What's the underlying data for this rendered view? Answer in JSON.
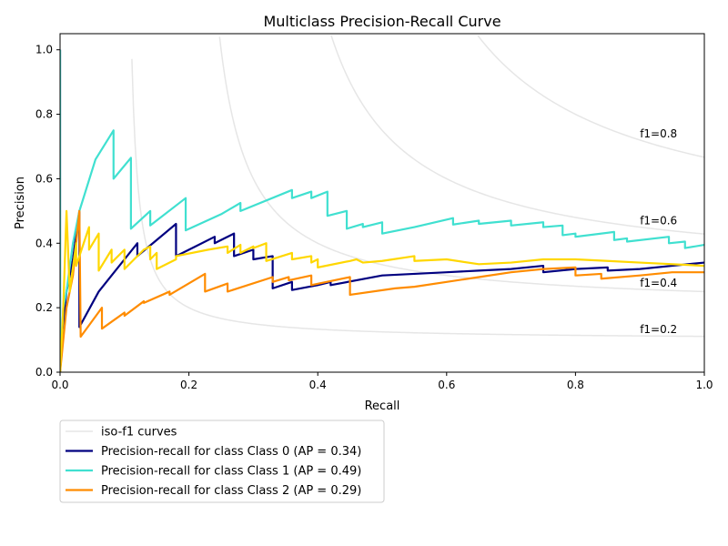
{
  "chart_data": {
    "type": "line",
    "title": "Multiclass Precision-Recall Curve",
    "xlabel": "Recall",
    "ylabel": "Precision",
    "xlim": [
      0.0,
      1.0
    ],
    "ylim": [
      0.0,
      1.05
    ],
    "xticks": [
      "0.0",
      "0.2",
      "0.4",
      "0.6",
      "0.8",
      "1.0"
    ],
    "yticks": [
      "0.0",
      "0.2",
      "0.4",
      "0.6",
      "0.8",
      "1.0"
    ],
    "grid": false,
    "legend_placement": "below plot",
    "iso_f1": {
      "legend_label": "iso-f1 curves",
      "color": "#e6e6e6",
      "levels": [
        0.2,
        0.4,
        0.6,
        0.8
      ],
      "labels": [
        "f1=0.2",
        "f1=0.4",
        "f1=0.6",
        "f1=0.8"
      ]
    },
    "series": [
      {
        "name": "Precision-recall for class Class 0 (AP = 0.34)",
        "color": "#000080",
        "in_legend": true,
        "points": [
          [
            0,
            1.0
          ],
          [
            0,
            0.0
          ],
          [
            0.005,
            0.15
          ],
          [
            0.01,
            0.25
          ],
          [
            0.02,
            0.35
          ],
          [
            0.03,
            0.5
          ],
          [
            0.03,
            0.14
          ],
          [
            0.06,
            0.25
          ],
          [
            0.08,
            0.3
          ],
          [
            0.1,
            0.35
          ],
          [
            0.12,
            0.4
          ],
          [
            0.12,
            0.36
          ],
          [
            0.15,
            0.41
          ],
          [
            0.18,
            0.46
          ],
          [
            0.18,
            0.36
          ],
          [
            0.21,
            0.39
          ],
          [
            0.24,
            0.42
          ],
          [
            0.24,
            0.4
          ],
          [
            0.27,
            0.43
          ],
          [
            0.27,
            0.36
          ],
          [
            0.3,
            0.38
          ],
          [
            0.3,
            0.35
          ],
          [
            0.33,
            0.36
          ],
          [
            0.33,
            0.26
          ],
          [
            0.36,
            0.28
          ],
          [
            0.36,
            0.255
          ],
          [
            0.4,
            0.27
          ],
          [
            0.42,
            0.28
          ],
          [
            0.42,
            0.27
          ],
          [
            0.5,
            0.3
          ],
          [
            0.55,
            0.305
          ],
          [
            0.6,
            0.31
          ],
          [
            0.65,
            0.315
          ],
          [
            0.7,
            0.32
          ],
          [
            0.75,
            0.33
          ],
          [
            0.75,
            0.31
          ],
          [
            0.8,
            0.32
          ],
          [
            0.85,
            0.325
          ],
          [
            0.85,
            0.315
          ],
          [
            0.9,
            0.32
          ],
          [
            0.95,
            0.33
          ],
          [
            1.0,
            0.34
          ]
        ]
      },
      {
        "name": "Precision-recall for class Class 1 (AP = 0.49)",
        "color": "#40e0d0",
        "in_legend": true,
        "points": [
          [
            0,
            1.0
          ],
          [
            0,
            0.0
          ],
          [
            0.005,
            0.2
          ],
          [
            0.01,
            0.25
          ],
          [
            0.02,
            0.4
          ],
          [
            0.03,
            0.5
          ],
          [
            0.055,
            0.66
          ],
          [
            0.083,
            0.75
          ],
          [
            0.083,
            0.6
          ],
          [
            0.11,
            0.665
          ],
          [
            0.11,
            0.445
          ],
          [
            0.14,
            0.5
          ],
          [
            0.14,
            0.455
          ],
          [
            0.195,
            0.54
          ],
          [
            0.195,
            0.44
          ],
          [
            0.25,
            0.49
          ],
          [
            0.28,
            0.525
          ],
          [
            0.28,
            0.5
          ],
          [
            0.36,
            0.565
          ],
          [
            0.36,
            0.54
          ],
          [
            0.39,
            0.56
          ],
          [
            0.39,
            0.54
          ],
          [
            0.415,
            0.56
          ],
          [
            0.415,
            0.485
          ],
          [
            0.445,
            0.5
          ],
          [
            0.445,
            0.445
          ],
          [
            0.47,
            0.46
          ],
          [
            0.47,
            0.45
          ],
          [
            0.5,
            0.465
          ],
          [
            0.5,
            0.43
          ],
          [
            0.55,
            0.45
          ],
          [
            0.61,
            0.478
          ],
          [
            0.61,
            0.458
          ],
          [
            0.65,
            0.47
          ],
          [
            0.65,
            0.46
          ],
          [
            0.7,
            0.47
          ],
          [
            0.7,
            0.455
          ],
          [
            0.75,
            0.465
          ],
          [
            0.75,
            0.45
          ],
          [
            0.78,
            0.455
          ],
          [
            0.78,
            0.425
          ],
          [
            0.8,
            0.43
          ],
          [
            0.8,
            0.42
          ],
          [
            0.86,
            0.435
          ],
          [
            0.86,
            0.41
          ],
          [
            0.88,
            0.415
          ],
          [
            0.88,
            0.405
          ],
          [
            0.945,
            0.42
          ],
          [
            0.945,
            0.4
          ],
          [
            0.97,
            0.405
          ],
          [
            0.97,
            0.385
          ],
          [
            1.0,
            0.395
          ]
        ]
      },
      {
        "name": "Precision-recall for class Class 2 (AP = 0.29)",
        "color": "#ff8c00",
        "in_legend": true,
        "points": [
          [
            0,
            0.0
          ],
          [
            0.005,
            0.1
          ],
          [
            0.01,
            0.2
          ],
          [
            0.02,
            0.3
          ],
          [
            0.03,
            0.5
          ],
          [
            0.032,
            0.11
          ],
          [
            0.065,
            0.2
          ],
          [
            0.065,
            0.135
          ],
          [
            0.1,
            0.185
          ],
          [
            0.1,
            0.175
          ],
          [
            0.13,
            0.22
          ],
          [
            0.13,
            0.215
          ],
          [
            0.17,
            0.25
          ],
          [
            0.17,
            0.24
          ],
          [
            0.225,
            0.305
          ],
          [
            0.225,
            0.25
          ],
          [
            0.26,
            0.275
          ],
          [
            0.26,
            0.25
          ],
          [
            0.33,
            0.295
          ],
          [
            0.33,
            0.28
          ],
          [
            0.355,
            0.295
          ],
          [
            0.355,
            0.285
          ],
          [
            0.39,
            0.3
          ],
          [
            0.39,
            0.27
          ],
          [
            0.45,
            0.295
          ],
          [
            0.45,
            0.24
          ],
          [
            0.52,
            0.26
          ],
          [
            0.55,
            0.265
          ],
          [
            0.6,
            0.28
          ],
          [
            0.65,
            0.295
          ],
          [
            0.7,
            0.31
          ],
          [
            0.75,
            0.32
          ],
          [
            0.8,
            0.325
          ],
          [
            0.8,
            0.3
          ],
          [
            0.84,
            0.305
          ],
          [
            0.84,
            0.29
          ],
          [
            0.9,
            0.3
          ],
          [
            0.95,
            0.31
          ],
          [
            1.0,
            0.31
          ]
        ]
      },
      {
        "name": "",
        "color": "#ffd700",
        "in_legend": false,
        "points": [
          [
            0,
            0.0
          ],
          [
            0.005,
            0.2
          ],
          [
            0.01,
            0.5
          ],
          [
            0.015,
            0.25
          ],
          [
            0.025,
            0.4
          ],
          [
            0.025,
            0.33
          ],
          [
            0.045,
            0.45
          ],
          [
            0.045,
            0.38
          ],
          [
            0.06,
            0.43
          ],
          [
            0.06,
            0.315
          ],
          [
            0.08,
            0.38
          ],
          [
            0.08,
            0.34
          ],
          [
            0.1,
            0.38
          ],
          [
            0.1,
            0.32
          ],
          [
            0.13,
            0.38
          ],
          [
            0.14,
            0.39
          ],
          [
            0.14,
            0.35
          ],
          [
            0.15,
            0.37
          ],
          [
            0.15,
            0.32
          ],
          [
            0.18,
            0.35
          ],
          [
            0.18,
            0.36
          ],
          [
            0.23,
            0.38
          ],
          [
            0.26,
            0.39
          ],
          [
            0.26,
            0.37
          ],
          [
            0.28,
            0.395
          ],
          [
            0.28,
            0.37
          ],
          [
            0.3,
            0.39
          ],
          [
            0.3,
            0.385
          ],
          [
            0.32,
            0.4
          ],
          [
            0.32,
            0.345
          ],
          [
            0.36,
            0.37
          ],
          [
            0.36,
            0.35
          ],
          [
            0.39,
            0.36
          ],
          [
            0.39,
            0.34
          ],
          [
            0.4,
            0.35
          ],
          [
            0.4,
            0.325
          ],
          [
            0.45,
            0.345
          ],
          [
            0.46,
            0.35
          ],
          [
            0.47,
            0.34
          ],
          [
            0.5,
            0.345
          ],
          [
            0.55,
            0.36
          ],
          [
            0.55,
            0.345
          ],
          [
            0.6,
            0.35
          ],
          [
            0.65,
            0.335
          ],
          [
            0.7,
            0.34
          ],
          [
            0.75,
            0.35
          ],
          [
            0.8,
            0.35
          ],
          [
            0.85,
            0.345
          ],
          [
            0.9,
            0.34
          ],
          [
            1.0,
            0.33
          ]
        ]
      }
    ]
  }
}
